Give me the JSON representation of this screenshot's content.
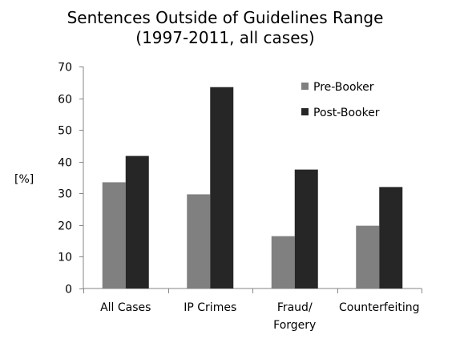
{
  "chart_data": {
    "type": "bar",
    "title_lines": [
      "Sentences Outside of Guidelines Range",
      "(1997-2011, all cases)"
    ],
    "ylabel": "[%]",
    "xlabel": "",
    "ylim": [
      0,
      70
    ],
    "yticks": [
      0,
      10,
      20,
      30,
      40,
      50,
      60,
      70
    ],
    "grid": false,
    "legend_position": "top-right",
    "categories": [
      [
        "All Cases"
      ],
      [
        "IP Crimes"
      ],
      [
        "Fraud/",
        "Forgery"
      ],
      [
        "Counterfeiting"
      ]
    ],
    "series": [
      {
        "name": "Pre-Booker",
        "color": "#808080",
        "values": [
          33.5,
          29.7,
          16.5,
          19.8
        ]
      },
      {
        "name": "Post-Booker",
        "color": "#262626",
        "values": [
          41.8,
          63.5,
          37.5,
          32.0
        ]
      }
    ]
  }
}
